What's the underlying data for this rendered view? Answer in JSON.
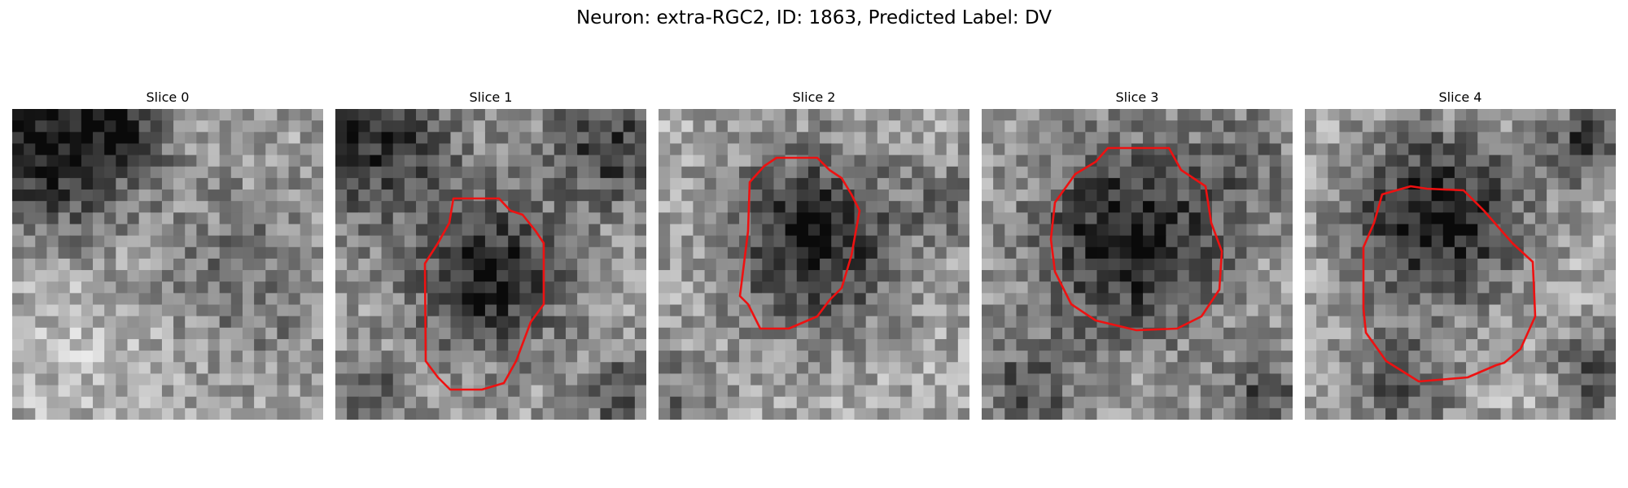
{
  "title": "Neuron: extra-RGC2, ID: 1863, Predicted Label: DV",
  "panels": [
    {
      "label": "Slice 0",
      "has_contour": false
    },
    {
      "label": "Slice 1",
      "has_contour": true
    },
    {
      "label": "Slice 2",
      "has_contour": true
    },
    {
      "label": "Slice 3",
      "has_contour": true
    },
    {
      "label": "Slice 4",
      "has_contour": true
    }
  ],
  "colors": {
    "contour": "#ee1111",
    "background": "#ffffff"
  }
}
